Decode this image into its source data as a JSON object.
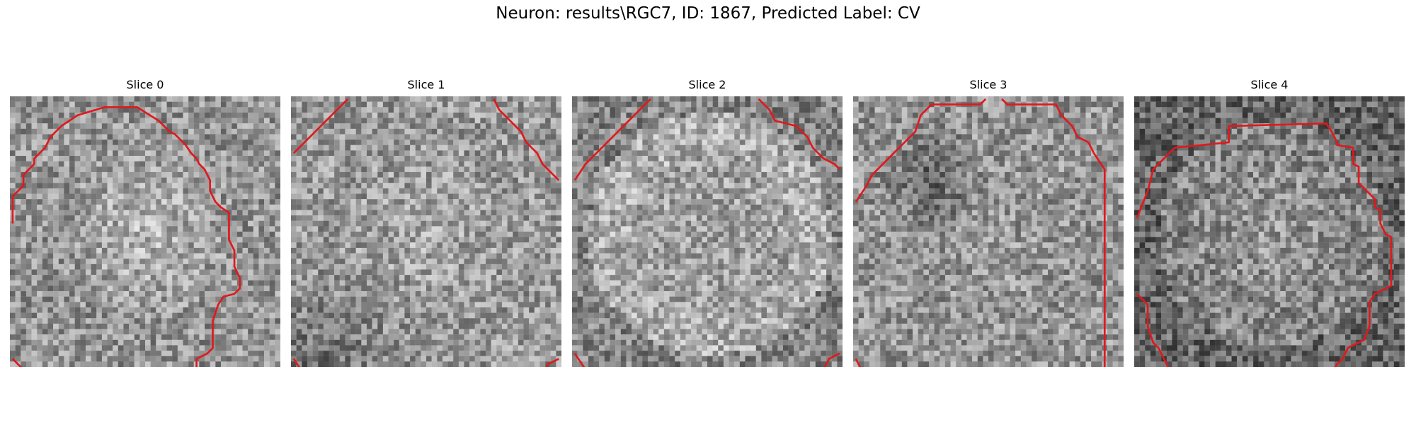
{
  "figure": {
    "title": "Neuron: results\\RGC7, ID: 1867, Predicted Label: CV",
    "contour_color": "#e0191c",
    "colormap": "gray",
    "slices": [
      {
        "title": "Slice 0",
        "seed": 11,
        "brightness": 0.58,
        "center_brightness": 0.14,
        "shading": "uniform",
        "contours": [
          [
            [
              0.5,
              23.5
            ],
            [
              0.5,
              18.5
            ],
            [
              2.5,
              16.5
            ],
            [
              2.5,
              14.5
            ],
            [
              4.5,
              12.5
            ],
            [
              4.5,
              11.5
            ],
            [
              6.5,
              9.5
            ],
            [
              7.5,
              7.5
            ],
            [
              9.5,
              5.5
            ],
            [
              12.5,
              3.5
            ],
            [
              17.5,
              2.0
            ],
            [
              23.5,
              2.0
            ],
            [
              27.5,
              4.5
            ],
            [
              29.5,
              6.5
            ],
            [
              30.5,
              7.0
            ],
            [
              31.5,
              8.0
            ],
            [
              32.5,
              9.0
            ],
            [
              33.5,
              10.5
            ],
            [
              34.5,
              11.5
            ],
            [
              35.0,
              12.5
            ],
            [
              36.0,
              13.5
            ],
            [
              37.0,
              15.5
            ],
            [
              37.0,
              17.5
            ],
            [
              38.0,
              19.5
            ],
            [
              39.0,
              20.5
            ],
            [
              40.5,
              21.5
            ],
            [
              40.5,
              26.5
            ],
            [
              41.5,
              28.5
            ],
            [
              41.5,
              31.5
            ],
            [
              42.5,
              33.5
            ],
            [
              42.5,
              35.5
            ],
            [
              41.5,
              36.5
            ],
            [
              39.5,
              37.0
            ],
            [
              38.5,
              38.5
            ],
            [
              37.5,
              41.5
            ],
            [
              37.5,
              46.5
            ],
            [
              36.5,
              47.5
            ],
            [
              34.5,
              48.5
            ],
            [
              34.5,
              51.5
            ],
            [
              33.5,
              53.5
            ],
            [
              32.5,
              54.5
            ],
            [
              31.5,
              56.5
            ],
            [
              31.5,
              59.5
            ]
          ],
          [
            [
              0.5,
              48.5
            ],
            [
              2.5,
              50.5
            ],
            [
              2.5,
              52.5
            ],
            [
              4.5,
              54.5
            ],
            [
              6.5,
              56.5
            ],
            [
              8.5,
              58.5
            ],
            [
              9.5,
              59.5
            ]
          ]
        ]
      },
      {
        "title": "Slice 1",
        "seed": 23,
        "brightness": 0.6,
        "center_brightness": 0.06,
        "shading": "bottom-left-dark",
        "contours": [
          [
            [
              0.5,
              10.5
            ],
            [
              2.5,
              8.5
            ],
            [
              4.5,
              6.5
            ],
            [
              6.5,
              4.5
            ],
            [
              8.5,
              2.5
            ],
            [
              10.5,
              0.5
            ]
          ],
          [
            [
              37.5,
              0.5
            ],
            [
              38.5,
              2.5
            ],
            [
              40.5,
              4.5
            ],
            [
              42.5,
              6.5
            ],
            [
              43.5,
              8.5
            ],
            [
              45.5,
              10.5
            ],
            [
              46.5,
              12.5
            ],
            [
              48.5,
              14.5
            ],
            [
              49.5,
              15.5
            ]
          ],
          [
            [
              0.5,
              48.5
            ],
            [
              2.5,
              51.5
            ],
            [
              4.5,
              53.5
            ],
            [
              6.5,
              55.5
            ],
            [
              8.5,
              57.5
            ],
            [
              10.5,
              59.5
            ]
          ],
          [
            [
              49.5,
              48.5
            ],
            [
              47.5,
              49.5
            ],
            [
              46.5,
              51.5
            ],
            [
              45.5,
              53.5
            ],
            [
              44.5,
              55.5
            ],
            [
              42.5,
              56.5
            ],
            [
              41.5,
              57.5
            ],
            [
              40.5,
              59.5
            ]
          ]
        ]
      },
      {
        "title": "Slice 2",
        "seed": 37,
        "brightness": 0.62,
        "center_brightness": 0.02,
        "shading": "ring",
        "contours": [
          [
            [
              0.5,
              15.5
            ],
            [
              2.5,
              12.5
            ],
            [
              4.5,
              10.5
            ],
            [
              6.5,
              8.5
            ],
            [
              8.5,
              6.5
            ],
            [
              10.5,
              4.5
            ],
            [
              12.5,
              2.5
            ],
            [
              14.5,
              0.5
            ]
          ],
          [
            [
              34.5,
              0.5
            ],
            [
              36.5,
              2.5
            ],
            [
              37.5,
              4.5
            ],
            [
              41.5,
              5.5
            ],
            [
              43.5,
              7.5
            ],
            [
              44.5,
              9.5
            ],
            [
              46.5,
              11.5
            ],
            [
              48.5,
              12.5
            ],
            [
              49.5,
              13.5
            ]
          ],
          [
            [
              0.5,
              47.5
            ],
            [
              2.5,
              50.5
            ],
            [
              4.5,
              52.5
            ],
            [
              6.5,
              54.5
            ],
            [
              8.5,
              56.5
            ],
            [
              10.5,
              59.5
            ]
          ],
          [
            [
              49.5,
              47.5
            ],
            [
              47.5,
              48.5
            ],
            [
              46.5,
              50.5
            ],
            [
              45.5,
              52.5
            ],
            [
              44.5,
              55.5
            ],
            [
              43.5,
              57.5
            ],
            [
              42.5,
              59.5
            ]
          ]
        ]
      },
      {
        "title": "Slice 3",
        "seed": 51,
        "brightness": 0.58,
        "center_brightness": 0.02,
        "shading": "top-left-dark",
        "contours": [
          [
            [
              0.5,
              19.5
            ],
            [
              2.5,
              16.5
            ],
            [
              3.5,
              14.5
            ],
            [
              5.5,
              12.5
            ],
            [
              7.5,
              10.5
            ],
            [
              9.5,
              8.5
            ],
            [
              11.5,
              6.5
            ],
            [
              12.5,
              3.5
            ],
            [
              14.5,
              1.5
            ],
            [
              23.5,
              1.5
            ],
            [
              24.5,
              0.5
            ]
          ],
          [
            [
              27.5,
              0.5
            ],
            [
              28.5,
              1.5
            ],
            [
              37.5,
              1.5
            ],
            [
              38.5,
              3.5
            ],
            [
              40.5,
              5.5
            ],
            [
              41.5,
              7.5
            ],
            [
              43.5,
              8.5
            ],
            [
              44.5,
              10.5
            ],
            [
              45.5,
              12.0
            ],
            [
              46.5,
              13.5
            ],
            [
              46.5,
              43.0
            ],
            [
              46.5,
              51.5
            ],
            [
              44.5,
              52.5
            ],
            [
              43.5,
              54.5
            ],
            [
              43.5,
              59.5
            ]
          ],
          [
            [
              0.5,
              48.5
            ],
            [
              2.5,
              52.5
            ],
            [
              3.5,
              54.5
            ],
            [
              4.5,
              56.5
            ],
            [
              6.5,
              58.5
            ],
            [
              7.5,
              59.5
            ]
          ]
        ]
      },
      {
        "title": "Slice 4",
        "seed": 67,
        "brightness": 0.52,
        "center_brightness": 0.08,
        "shading": "edge-dark",
        "contours": [
          [
            [
              0.5,
              22.5
            ],
            [
              2.5,
              17.5
            ],
            [
              3.5,
              13.5
            ],
            [
              5.5,
              11.5
            ],
            [
              7.5,
              9.5
            ],
            [
              17.5,
              8.5
            ],
            [
              17.5,
              5.5
            ],
            [
              35.5,
              5.0
            ],
            [
              36.5,
              6.5
            ],
            [
              37.5,
              8.5
            ],
            [
              37.5,
              9.0
            ],
            [
              40.5,
              9.5
            ],
            [
              40.5,
              12.5
            ],
            [
              41.5,
              13.0
            ],
            [
              41.5,
              16.0
            ],
            [
              42.5,
              17.0
            ],
            [
              44.5,
              19.0
            ],
            [
              44.5,
              20.5
            ],
            [
              45.5,
              21.0
            ],
            [
              45.5,
              23.5
            ],
            [
              46.5,
              25.5
            ],
            [
              47.5,
              26.0
            ],
            [
              47.5,
              35.0
            ],
            [
              46.5,
              35.5
            ],
            [
              44.5,
              36.5
            ],
            [
              43.5,
              38.0
            ],
            [
              43.5,
              42.5
            ],
            [
              42.5,
              45.0
            ],
            [
              39.5,
              46.5
            ],
            [
              38.5,
              48.5
            ],
            [
              37.5,
              49.5
            ],
            [
              36.5,
              51.0
            ],
            [
              35.5,
              52.5
            ],
            [
              34.5,
              53.5
            ],
            [
              32.5,
              54.5
            ],
            [
              31.5,
              55.5
            ],
            [
              30.0,
              56.5
            ],
            [
              27.5,
              57.0
            ],
            [
              27.5,
              59.5
            ]
          ],
          [
            [
              0.5,
              36.5
            ],
            [
              2.5,
              38.5
            ],
            [
              2.5,
              42.5
            ],
            [
              3.5,
              45.5
            ],
            [
              4.5,
              46.5
            ],
            [
              5.5,
              48.5
            ],
            [
              6.5,
              50.5
            ],
            [
              8.5,
              53.5
            ],
            [
              10.5,
              55.5
            ],
            [
              12.5,
              55.5
            ],
            [
              14.5,
              56.5
            ],
            [
              16.5,
              56.5
            ],
            [
              17.5,
              57.5
            ],
            [
              17.5,
              59.5
            ]
          ]
        ]
      }
    ]
  }
}
